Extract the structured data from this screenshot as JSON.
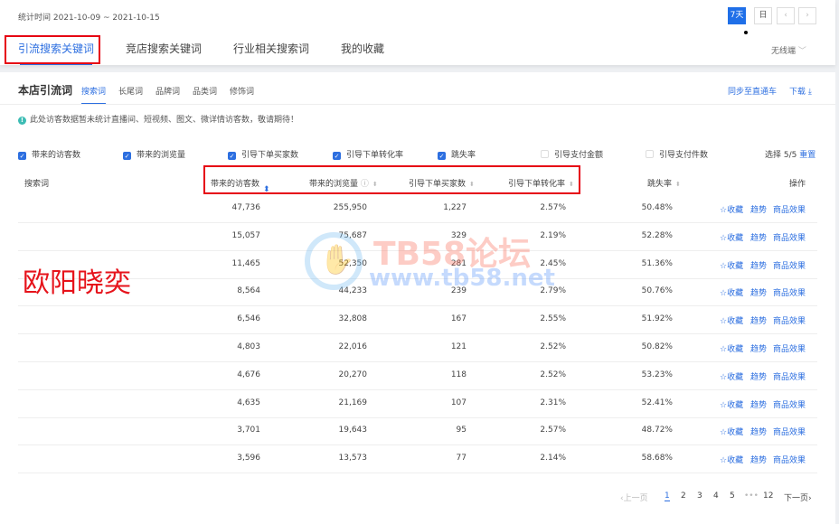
{
  "header": {
    "date_range": "统计时间 2021-10-09 ~ 2021-10-15",
    "period_buttons": [
      "7天",
      "日"
    ],
    "active_period": "7天",
    "prev_icon": "chevron-left-icon",
    "next_icon": "chevron-right-icon"
  },
  "tabs": [
    {
      "label": "引流搜索关键词",
      "active": true
    },
    {
      "label": "竞店搜索关键词"
    },
    {
      "label": "行业相关搜索词"
    },
    {
      "label": "我的收藏"
    }
  ],
  "device_select": "无线端",
  "section": {
    "title": "本店引流词",
    "subtabs": [
      "搜索词",
      "长尾词",
      "品牌词",
      "品类词",
      "修饰词"
    ],
    "active_subtab": "搜索词",
    "sync_link": "同步至直通车",
    "download_link": "下载"
  },
  "notice": "此处访客数据暂未统计直播间、短视频、图文、微详情访客数，敬请期待！",
  "metrics": [
    {
      "label": "带来的访客数",
      "checked": true
    },
    {
      "label": "带来的浏览量",
      "checked": true
    },
    {
      "label": "引导下单买家数",
      "checked": true
    },
    {
      "label": "引导下单转化率",
      "checked": true
    },
    {
      "label": "跳失率",
      "checked": true
    },
    {
      "label": "引导支付金额",
      "checked": false
    },
    {
      "label": "引导支付件数",
      "checked": false
    }
  ],
  "selection": {
    "count": "选择 5/5",
    "reset": "重置"
  },
  "table": {
    "columns": [
      "搜索词",
      "带来的访客数",
      "带来的浏览量",
      "引导下单买家数",
      "引导下单转化率",
      "跳失率",
      "操作"
    ],
    "rows": [
      [
        "",
        "47,736",
        "255,950",
        "1,227",
        "2.57%",
        "50.48%"
      ],
      [
        "",
        "15,057",
        "75,687",
        "329",
        "2.19%",
        "52.28%"
      ],
      [
        "",
        "11,465",
        "52,350",
        "281",
        "2.45%",
        "51.36%"
      ],
      [
        "",
        "8,564",
        "44,233",
        "239",
        "2.79%",
        "50.76%"
      ],
      [
        "",
        "6,546",
        "32,808",
        "167",
        "2.55%",
        "51.92%"
      ],
      [
        "",
        "4,803",
        "22,016",
        "121",
        "2.52%",
        "50.82%"
      ],
      [
        "",
        "4,676",
        "20,270",
        "118",
        "2.52%",
        "53.23%"
      ],
      [
        "",
        "4,635",
        "21,169",
        "107",
        "2.31%",
        "52.41%"
      ],
      [
        "",
        "3,701",
        "19,643",
        "95",
        "2.57%",
        "48.72%"
      ],
      [
        "",
        "3,596",
        "13,573",
        "77",
        "2.14%",
        "58.68%"
      ]
    ],
    "actions": [
      "☆收藏",
      "趋势",
      "商品效果"
    ]
  },
  "pagination": {
    "prev": "上一页",
    "pages": [
      "1",
      "2",
      "3",
      "4",
      "5",
      "•••",
      "12"
    ],
    "current": "1",
    "next": "下一页"
  },
  "overlay_text": "欧阳晓奕",
  "watermark": {
    "title": "TB58论坛",
    "url": "www.tb58.net"
  },
  "colors": {
    "accent": "#2d6fe0",
    "highlight_box": "#e60012"
  }
}
